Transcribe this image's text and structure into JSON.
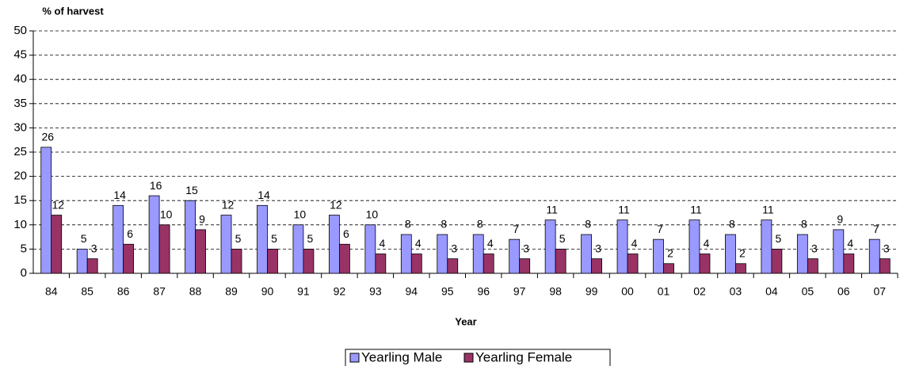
{
  "chart_data": {
    "type": "bar",
    "y_axis_title": "% of harvest",
    "x_axis_title": "Year",
    "categories": [
      "84",
      "85",
      "86",
      "87",
      "88",
      "89",
      "90",
      "91",
      "92",
      "93",
      "94",
      "95",
      "96",
      "97",
      "98",
      "99",
      "00",
      "01",
      "02",
      "03",
      "04",
      "05",
      "06",
      "07"
    ],
    "series": [
      {
        "name": "Yearling Male",
        "color": "#9999ff",
        "values": [
          26,
          5,
          14,
          16,
          15,
          12,
          14,
          10,
          12,
          10,
          8,
          8,
          8,
          7,
          11,
          8,
          11,
          7,
          11,
          8,
          11,
          8,
          9,
          7
        ]
      },
      {
        "name": "Yearling Female",
        "color": "#993366",
        "values": [
          12,
          3,
          6,
          10,
          9,
          5,
          5,
          5,
          6,
          4,
          4,
          3,
          4,
          3,
          5,
          3,
          4,
          2,
          4,
          2,
          5,
          3,
          4,
          3
        ]
      }
    ],
    "ylim": [
      0,
      50
    ],
    "yticks": [
      0,
      5,
      10,
      15,
      20,
      25,
      30,
      35,
      40,
      45,
      50
    ],
    "grid": true,
    "legend": "bottom"
  }
}
